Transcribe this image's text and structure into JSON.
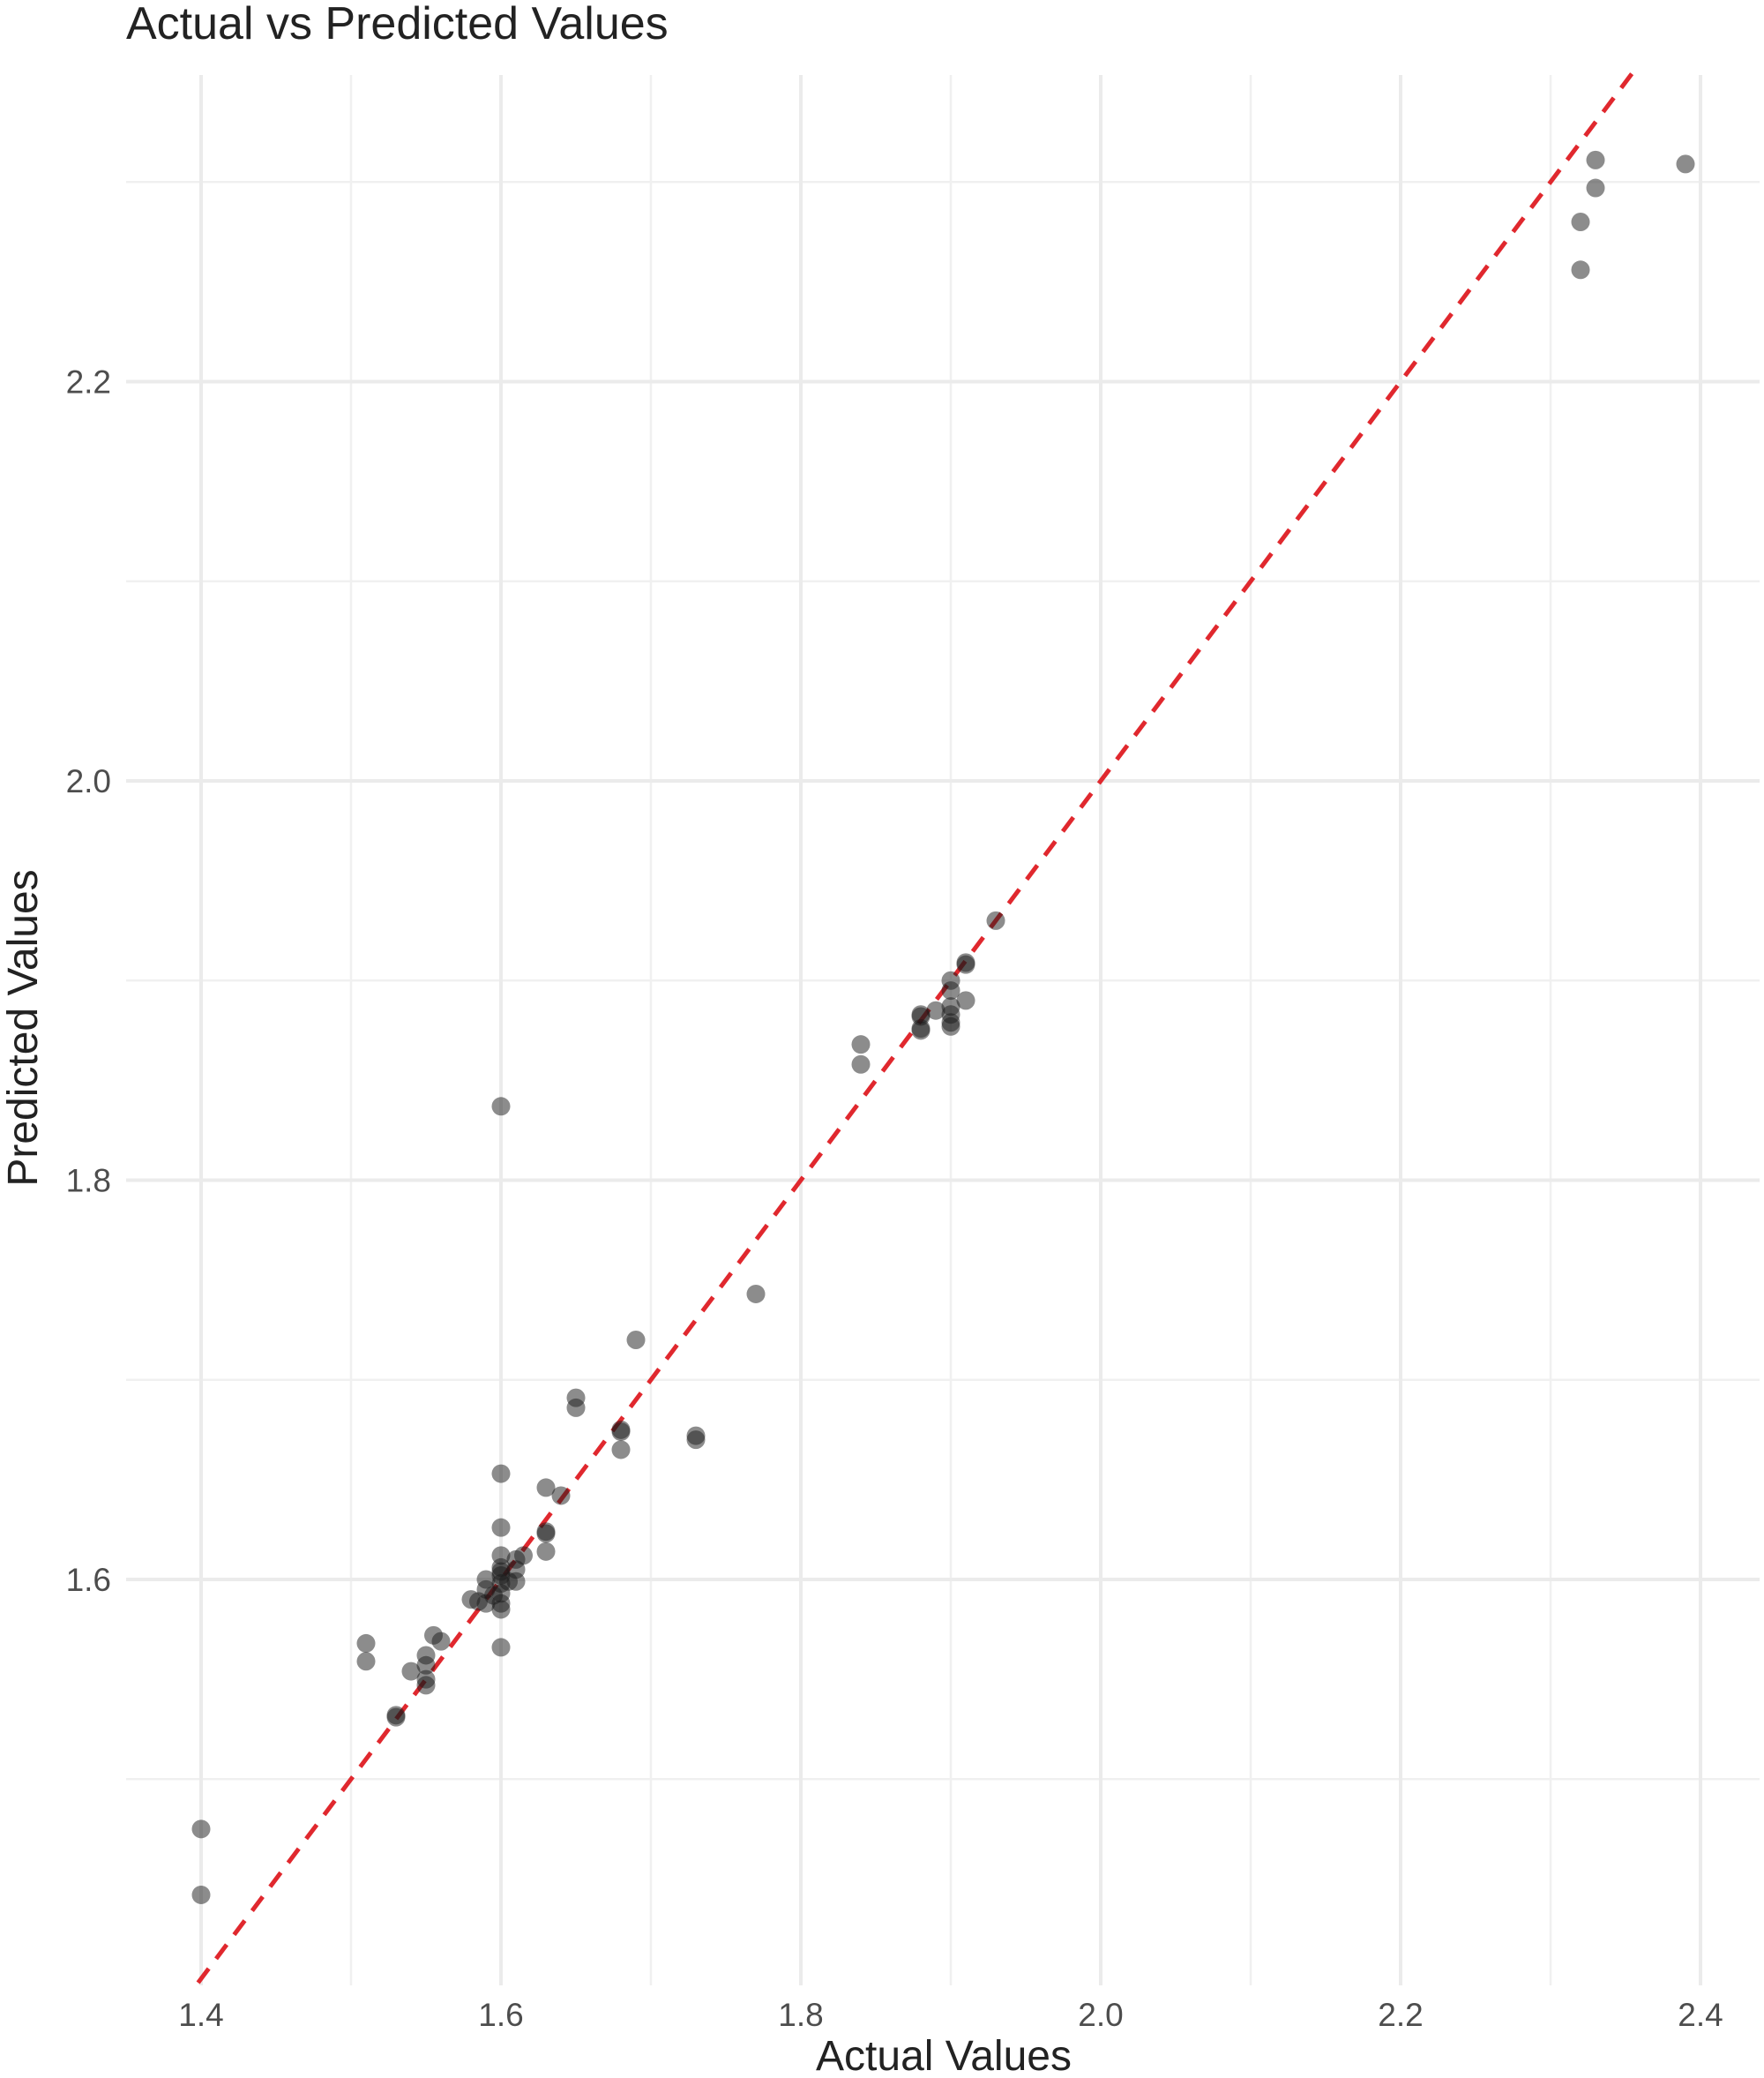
{
  "chart_data": {
    "type": "scatter",
    "title": "Actual vs Predicted Values",
    "xlabel": "Actual Values",
    "ylabel": "Predicted Values",
    "xlim": [
      1.395,
      2.41
    ],
    "ylim": [
      1.398,
      2.355
    ],
    "x_ticks": [
      1.4,
      1.6,
      1.8,
      2.0,
      2.2,
      2.4
    ],
    "x_tick_labels": [
      "1.4",
      "1.6",
      "1.8",
      "2.0",
      "2.2",
      "2.4"
    ],
    "y_ticks": [
      1.6,
      1.8,
      2.0,
      2.2
    ],
    "y_tick_labels": [
      "1.6",
      "1.8",
      "2.0",
      "2.2"
    ],
    "x_minor_ticks": [
      1.5,
      1.7,
      1.9,
      2.1,
      2.3
    ],
    "y_minor_ticks": [
      1.5,
      1.7,
      1.9,
      2.1,
      2.3
    ],
    "grid": true,
    "legend": "none",
    "point_color": "#1a1a1a",
    "point_opacity": 0.5,
    "reference_line": {
      "type": "identity",
      "style": "dashed",
      "color": "#e0282e"
    },
    "points": {
      "x": [
        1.4,
        1.4,
        1.51,
        1.51,
        1.53,
        1.53,
        1.54,
        1.55,
        1.55,
        1.55,
        1.55,
        1.555,
        1.56,
        1.58,
        1.585,
        1.59,
        1.59,
        1.59,
        1.595,
        1.6,
        1.6,
        1.6,
        1.6,
        1.6,
        1.6,
        1.6,
        1.6,
        1.6,
        1.6,
        1.6,
        1.6,
        1.605,
        1.61,
        1.61,
        1.61,
        1.615,
        1.63,
        1.63,
        1.63,
        1.63,
        1.64,
        1.65,
        1.65,
        1.68,
        1.68,
        1.68,
        1.69,
        1.73,
        1.73,
        1.77,
        1.84,
        1.84,
        1.88,
        1.88,
        1.88,
        1.88,
        1.89,
        1.9,
        1.9,
        1.9,
        1.9,
        1.9,
        1.9,
        1.91,
        1.91,
        1.91,
        1.93,
        2.32,
        2.32,
        2.33,
        2.33,
        2.39
      ],
      "y": [
        1.475,
        1.442,
        1.568,
        1.559,
        1.532,
        1.531,
        1.554,
        1.562,
        1.557,
        1.55,
        1.547,
        1.572,
        1.569,
        1.59,
        1.589,
        1.6,
        1.595,
        1.588,
        1.592,
        1.837,
        1.653,
        1.626,
        1.612,
        1.606,
        1.604,
        1.602,
        1.598,
        1.593,
        1.588,
        1.585,
        1.566,
        1.599,
        1.61,
        1.605,
        1.599,
        1.612,
        1.646,
        1.624,
        1.623,
        1.614,
        1.642,
        1.691,
        1.686,
        1.675,
        1.674,
        1.665,
        1.72,
        1.672,
        1.67,
        1.743,
        1.868,
        1.858,
        1.883,
        1.882,
        1.876,
        1.875,
        1.885,
        1.9,
        1.895,
        1.887,
        1.883,
        1.879,
        1.877,
        1.909,
        1.908,
        1.89,
        1.93,
        2.28,
        2.256,
        2.311,
        2.297,
        2.309
      ]
    }
  }
}
